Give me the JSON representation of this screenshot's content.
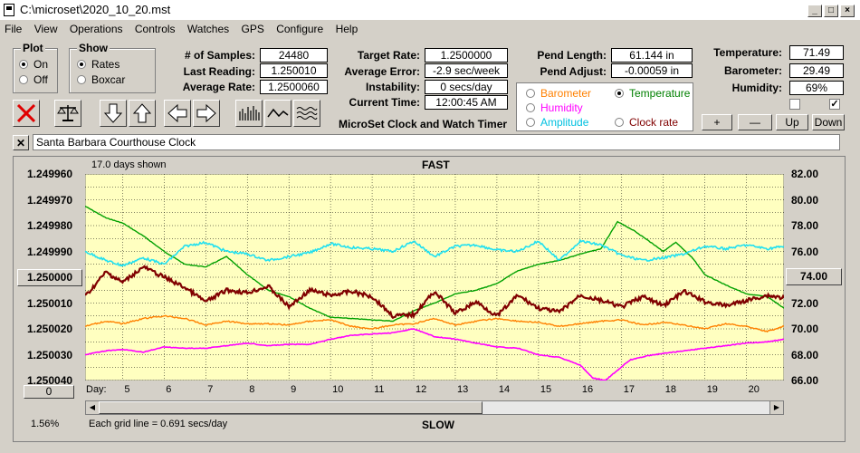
{
  "window": {
    "title": "C:\\microset\\2020_10_20.mst"
  },
  "menu": [
    "File",
    "View",
    "Operations",
    "Controls",
    "Watches",
    "GPS",
    "Configure",
    "Help"
  ],
  "plot_group": {
    "label": "Plot",
    "on": "On",
    "off": "Off",
    "selected": "On"
  },
  "show_group": {
    "label": "Show",
    "rates": "Rates",
    "boxcar": "Boxcar",
    "selected": "Rates"
  },
  "stats": {
    "samples_label": "# of Samples:",
    "samples": "24480",
    "last_label": "Last Reading:",
    "last": "1.250010",
    "avg_label": "Average Rate:",
    "avg": "1.2500060",
    "target_label": "Target Rate:",
    "target": "1.2500000",
    "avgerr_label": "Average Error:",
    "avgerr": "-2.9 sec/week",
    "instab_label": "Instability:",
    "instab": "0 secs/day",
    "time_label": "Current Time:",
    "time": "12:00:45 AM",
    "pendlen_label": "Pend Length:",
    "pendlen": "61.144 in",
    "pendadj_label": "Pend Adjust:",
    "pendadj": "-0.00059 in",
    "temp_label": "Temperature:",
    "temp": "71.49",
    "baro_label": "Barometer:",
    "baro": "29.49",
    "humid_label": "Humidity:",
    "humid": "69%"
  },
  "app_caption": "MicroSet Clock and Watch Timer",
  "legend": {
    "barometer": "Barometer",
    "temperature": "Temperature",
    "humidity": "Humidity",
    "amplitude": "Amplitude",
    "clockrate": "Clock rate",
    "selected": "Temperature",
    "colors": {
      "barometer": "#ff8000",
      "temperature": "#008000",
      "humidity": "#ff00ff",
      "amplitude": "#00c0e0",
      "clockrate": "#800000"
    }
  },
  "scale_buttons": {
    "plus": "+",
    "minus": "—",
    "up": "Up",
    "down": "Down"
  },
  "clock_name": "Santa Barbara Courthouse Clock",
  "plot": {
    "days_shown": "17.0 days shown",
    "top_label": "FAST",
    "bottom_label": "SLOW",
    "grid_note": "Each grid line = 0.691 secs/day",
    "percent": "1.56%",
    "day_label": "Day:",
    "center_button": "1.250000",
    "right_button": "74.00",
    "zero_button": "0"
  },
  "chart_data": {
    "type": "line",
    "x_ticks": [
      "5",
      "6",
      "7",
      "8",
      "9",
      "10",
      "11",
      "12",
      "13",
      "14",
      "15",
      "16",
      "17",
      "18",
      "19",
      "20"
    ],
    "y_left_ticks": [
      "1.249960",
      "1.249970",
      "1.249980",
      "1.249990",
      "1.250000",
      "1.250010",
      "1.250020",
      "1.250030",
      "1.250040"
    ],
    "y_right_ticks": [
      "82.00",
      "80.00",
      "78.00",
      "76.00",
      "74.00",
      "72.00",
      "70.00",
      "68.00",
      "66.00"
    ],
    "ylim_left": [
      1.24996,
      1.25004
    ],
    "ylim_right": [
      66,
      82
    ],
    "xlim": [
      4.1,
      20.9
    ],
    "background": "#ffffc0",
    "series": [
      {
        "name": "Temperature",
        "color": "#00a000",
        "x": [
          4.1,
          4.6,
          5.0,
          5.5,
          6.0,
          6.5,
          7.0,
          7.5,
          8.0,
          8.5,
          9.0,
          9.5,
          10.0,
          10.5,
          11.0,
          11.5,
          12.0,
          12.5,
          13.0,
          13.5,
          14.0,
          14.5,
          15.0,
          15.5,
          16.0,
          16.5,
          16.9,
          17.3,
          17.7,
          18.0,
          18.3,
          18.7,
          19.0,
          19.5,
          20.0,
          20.5,
          20.9
        ],
        "y": [
          79.5,
          78.6,
          78.2,
          77.2,
          76.0,
          75.0,
          74.8,
          75.6,
          74.2,
          73.0,
          72.5,
          71.6,
          70.9,
          70.8,
          70.7,
          70.6,
          71.4,
          72.0,
          72.7,
          73.0,
          73.5,
          74.5,
          75.0,
          75.3,
          75.8,
          76.2,
          78.3,
          77.6,
          76.7,
          76.0,
          76.7,
          75.5,
          74.2,
          73.4,
          72.7,
          72.5,
          71.6
        ]
      },
      {
        "name": "Amplitude",
        "color": "#20e0f0",
        "x": [
          4.1,
          4.6,
          5.0,
          5.5,
          6.0,
          6.5,
          7.0,
          7.5,
          8.0,
          8.5,
          9.0,
          9.5,
          10.0,
          10.5,
          11.0,
          11.5,
          12.0,
          12.5,
          13.0,
          13.5,
          14.0,
          14.5,
          15.0,
          15.5,
          16.0,
          16.5,
          17.0,
          17.5,
          18.0,
          18.5,
          19.0,
          19.5,
          20.0,
          20.5,
          20.9
        ],
        "y": [
          76.0,
          75.3,
          74.9,
          75.5,
          75.0,
          76.4,
          76.7,
          76.0,
          75.8,
          75.3,
          75.6,
          75.9,
          76.6,
          76.3,
          76.2,
          76.0,
          76.8,
          75.6,
          76.4,
          76.5,
          76.1,
          76.0,
          76.8,
          75.3,
          76.8,
          76.5,
          75.7,
          75.3,
          75.5,
          75.8,
          76.4,
          76.2,
          76.5,
          76.2,
          76.4
        ]
      },
      {
        "name": "Clock rate",
        "color": "#800000",
        "x": [
          4.1,
          4.6,
          5.0,
          5.5,
          6.0,
          6.5,
          7.0,
          7.5,
          8.0,
          8.5,
          9.0,
          9.5,
          10.0,
          10.5,
          11.0,
          11.5,
          12.0,
          12.5,
          13.0,
          13.5,
          14.0,
          14.5,
          15.0,
          15.5,
          16.0,
          16.5,
          17.0,
          17.5,
          18.0,
          18.5,
          19.0,
          19.5,
          20.0,
          20.5,
          20.9
        ],
        "y": [
          72.5,
          74.4,
          73.6,
          74.8,
          74.0,
          73.2,
          72.1,
          73.0,
          72.8,
          73.3,
          71.7,
          73.0,
          72.6,
          72.9,
          72.5,
          71.0,
          71.1,
          72.9,
          71.2,
          72.1,
          71.0,
          72.6,
          71.6,
          71.3,
          72.6,
          72.2,
          71.7,
          72.5,
          71.8,
          72.9,
          72.1,
          71.8,
          72.2,
          72.6,
          72.4
        ]
      },
      {
        "name": "Barometer",
        "color": "#ff8000",
        "x": [
          4.1,
          4.6,
          5.0,
          5.5,
          6.0,
          6.5,
          7.0,
          7.5,
          8.0,
          8.5,
          9.0,
          9.5,
          10.0,
          10.5,
          11.0,
          11.5,
          12.0,
          12.5,
          13.0,
          13.5,
          14.0,
          14.5,
          15.0,
          15.5,
          16.0,
          16.5,
          17.0,
          17.5,
          18.0,
          18.5,
          19.0,
          19.5,
          20.0,
          20.5,
          20.9
        ],
        "y": [
          70.2,
          70.6,
          70.4,
          70.8,
          71.0,
          70.8,
          70.3,
          70.6,
          70.4,
          70.4,
          70.3,
          70.6,
          70.7,
          70.2,
          70.0,
          70.3,
          70.4,
          70.8,
          70.3,
          70.6,
          70.8,
          70.6,
          70.5,
          70.2,
          70.4,
          70.6,
          70.7,
          70.3,
          70.5,
          70.3,
          70.0,
          70.4,
          70.2,
          69.8,
          70.2
        ]
      },
      {
        "name": "Humidity",
        "color": "#ff00ff",
        "x": [
          4.1,
          4.6,
          5.0,
          5.5,
          6.0,
          6.5,
          7.0,
          7.5,
          8.0,
          8.5,
          9.0,
          9.5,
          10.0,
          10.5,
          11.0,
          11.5,
          12.0,
          12.5,
          13.0,
          13.5,
          14.0,
          14.5,
          15.0,
          15.5,
          16.0,
          16.3,
          16.6,
          16.9,
          17.2,
          17.6,
          18.0,
          18.5,
          19.0,
          19.5,
          20.0,
          20.5,
          20.9
        ],
        "y": [
          68.0,
          68.3,
          68.4,
          68.2,
          68.6,
          68.5,
          68.5,
          68.7,
          68.9,
          68.7,
          68.8,
          68.8,
          69.2,
          69.5,
          69.6,
          69.7,
          70.0,
          69.4,
          69.2,
          68.9,
          68.6,
          68.5,
          68.0,
          67.8,
          67.2,
          66.2,
          66.0,
          66.8,
          67.6,
          67.9,
          68.1,
          68.3,
          68.5,
          68.7,
          68.9,
          69.0,
          69.2
        ]
      }
    ]
  }
}
